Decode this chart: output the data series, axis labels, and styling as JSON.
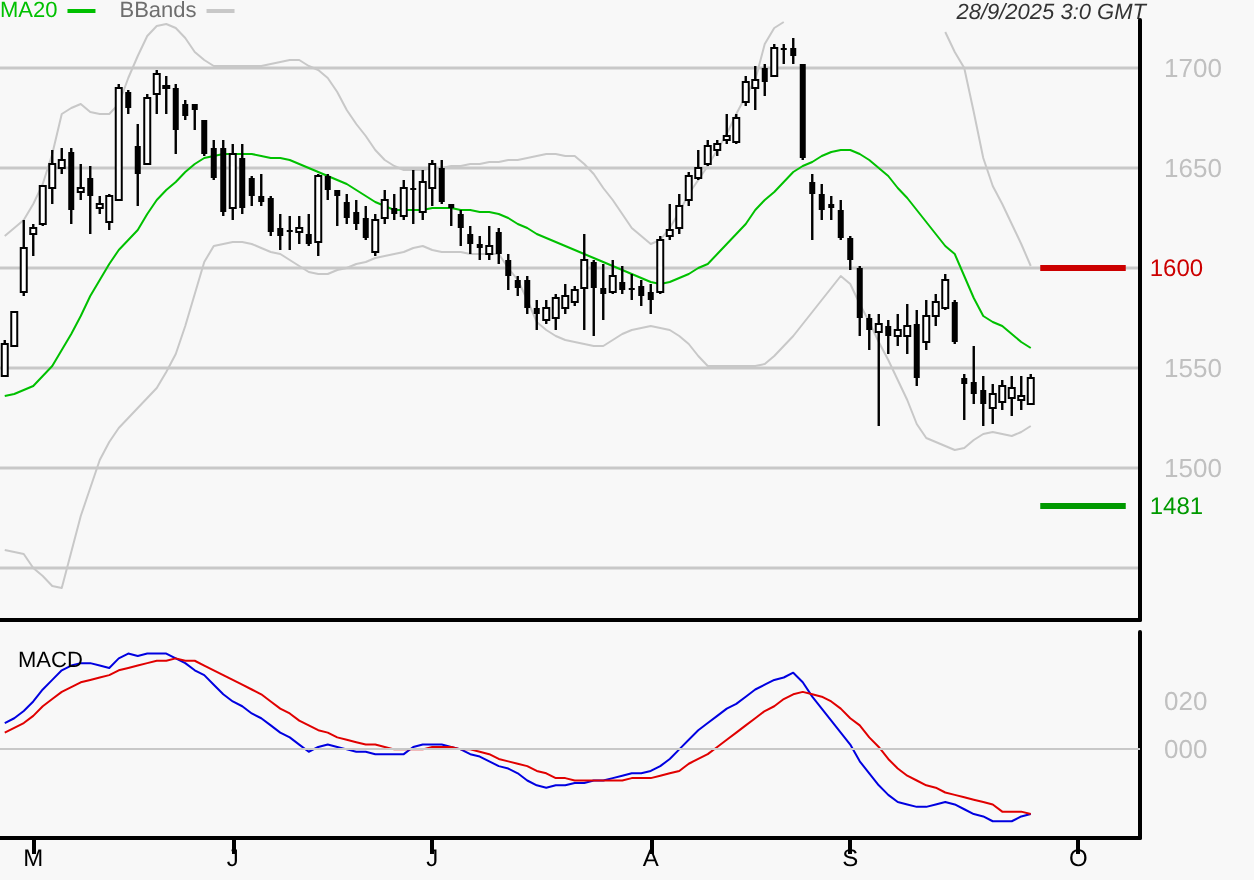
{
  "chart_data": [
    {
      "type": "candlestick",
      "annotations": [
        "28/9/2025 3:0 GMT"
      ],
      "categories": [
        null,
        null,
        null,
        null,
        null,
        null,
        null,
        null,
        null,
        null,
        null,
        null,
        null,
        null,
        null,
        null,
        null,
        null,
        null,
        null,
        null,
        null,
        null,
        null,
        null,
        null,
        null,
        null,
        null,
        null,
        null,
        null,
        null,
        null,
        null,
        null,
        null,
        null,
        null,
        null,
        null,
        null,
        null,
        null,
        null,
        null,
        null,
        null,
        null,
        null,
        null,
        null,
        null,
        null,
        null,
        null,
        null,
        null,
        null,
        null,
        null,
        null,
        null,
        null,
        null,
        null,
        null,
        null,
        null,
        null,
        null,
        null,
        null,
        null,
        null,
        null,
        null,
        null,
        null,
        null,
        null,
        null,
        null,
        null,
        null,
        null,
        null,
        null,
        null,
        null,
        null,
        null,
        null,
        null,
        null,
        null,
        null,
        null,
        null,
        null,
        null,
        null,
        null,
        null,
        null,
        null,
        null,
        null,
        null,
        null,
        null,
        null,
        null,
        null,
        null,
        null,
        null,
        null,
        null,
        null
      ],
      "ohlc": [
        [
          1546,
          1564,
          1546,
          1562
        ],
        [
          1561,
          1578,
          1561,
          1578
        ],
        [
          1588,
          1624,
          1586,
          1610
        ],
        [
          1617,
          1622,
          1606,
          1620
        ],
        [
          1622,
          1641,
          1621,
          1641
        ],
        [
          1640,
          1659,
          1632,
          1652
        ],
        [
          1650,
          1660,
          1647,
          1654
        ],
        [
          1658,
          1660,
          1622,
          1629
        ],
        [
          1638,
          1652,
          1634,
          1640
        ],
        [
          1645,
          1651,
          1617,
          1636
        ],
        [
          1630,
          1636,
          1627,
          1632
        ],
        [
          1623,
          1637,
          1619,
          1636
        ],
        [
          1634,
          1692,
          1634,
          1690
        ],
        [
          1688,
          1689,
          1677,
          1680
        ],
        [
          1661,
          1672,
          1631,
          1647
        ],
        [
          1652,
          1687,
          1652,
          1685
        ],
        [
          1687,
          1699,
          1677,
          1697
        ],
        [
          1690,
          1696,
          1677,
          1691
        ],
        [
          1690,
          1692,
          1657,
          1669
        ],
        [
          1682,
          1684,
          1674,
          1676
        ],
        [
          1682,
          1682,
          1669,
          1679
        ],
        [
          1674,
          1674,
          1656,
          1657
        ],
        [
          1660,
          1664,
          1644,
          1645
        ],
        [
          1660,
          1664,
          1626,
          1628
        ],
        [
          1630,
          1662,
          1624,
          1657
        ],
        [
          1655,
          1662,
          1627,
          1630
        ],
        [
          1645,
          1646,
          1631,
          1636
        ],
        [
          1636,
          1647,
          1631,
          1633
        ],
        [
          1635,
          1636,
          1616,
          1618
        ],
        [
          1620,
          1627,
          1609,
          1616
        ],
        [
          1619,
          1626,
          1609,
          1618
        ],
        [
          1618,
          1626,
          1612,
          1620
        ],
        [
          1617,
          1627,
          1611,
          1612
        ],
        [
          1613,
          1647,
          1606,
          1646
        ],
        [
          1646,
          1647,
          1634,
          1639
        ],
        [
          1639,
          1639,
          1621,
          1636
        ],
        [
          1633,
          1637,
          1622,
          1625
        ],
        [
          1628,
          1634,
          1619,
          1622
        ],
        [
          1625,
          1631,
          1614,
          1615
        ],
        [
          1608,
          1627,
          1606,
          1624
        ],
        [
          1625,
          1639,
          1622,
          1634
        ],
        [
          1630,
          1637,
          1624,
          1627
        ],
        [
          1626,
          1644,
          1624,
          1640
        ],
        [
          1640,
          1649,
          1622,
          1639
        ],
        [
          1628,
          1649,
          1624,
          1643
        ],
        [
          1640,
          1654,
          1631,
          1652
        ],
        [
          1650,
          1654,
          1632,
          1633
        ],
        [
          1632,
          1632,
          1621,
          1630
        ],
        [
          1627,
          1629,
          1611,
          1620
        ],
        [
          1617,
          1621,
          1607,
          1612
        ],
        [
          1612,
          1616,
          1604,
          1610
        ],
        [
          1607,
          1621,
          1604,
          1611
        ],
        [
          1618,
          1620,
          1602,
          1607
        ],
        [
          1604,
          1607,
          1589,
          1596
        ],
        [
          1594,
          1596,
          1586,
          1590
        ],
        [
          1594,
          1596,
          1577,
          1580
        ],
        [
          1580,
          1584,
          1569,
          1577
        ],
        [
          1574,
          1584,
          1572,
          1580
        ],
        [
          1575,
          1587,
          1569,
          1585
        ],
        [
          1580,
          1592,
          1577,
          1586
        ],
        [
          1583,
          1591,
          1581,
          1589
        ],
        [
          1590,
          1617,
          1569,
          1604
        ],
        [
          1603,
          1604,
          1566,
          1590
        ],
        [
          1590,
          1602,
          1574,
          1587
        ],
        [
          1588,
          1604,
          1587,
          1596
        ],
        [
          1593,
          1601,
          1587,
          1589
        ],
        [
          1590,
          1597,
          1584,
          1589
        ],
        [
          1591,
          1594,
          1581,
          1586
        ],
        [
          1588,
          1592,
          1577,
          1584
        ],
        [
          1588,
          1616,
          1587,
          1614
        ],
        [
          1616,
          1632,
          1614,
          1619
        ],
        [
          1620,
          1637,
          1617,
          1631
        ],
        [
          1634,
          1648,
          1631,
          1646
        ],
        [
          1645,
          1659,
          1644,
          1650
        ],
        [
          1652,
          1664,
          1651,
          1661
        ],
        [
          1659,
          1664,
          1656,
          1662
        ],
        [
          1664,
          1677,
          1662,
          1666
        ],
        [
          1663,
          1677,
          1662,
          1675
        ],
        [
          1683,
          1696,
          1681,
          1693
        ],
        [
          1690,
          1701,
          1679,
          1694
        ],
        [
          1700,
          1702,
          1686,
          1693
        ],
        [
          1696,
          1712,
          1696,
          1710
        ],
        [
          1710,
          1712,
          1702,
          1709
        ],
        [
          1710,
          1715,
          1702,
          1706
        ],
        [
          1702,
          1702,
          1654,
          1655
        ],
        [
          1643,
          1647,
          1614,
          1637
        ],
        [
          1637,
          1642,
          1624,
          1629
        ],
        [
          1632,
          1636,
          1624,
          1630
        ],
        [
          1629,
          1634,
          1614,
          1615
        ],
        [
          1615,
          1616,
          1599,
          1604
        ],
        [
          1600,
          1601,
          1566,
          1575
        ],
        [
          1575,
          1577,
          1559,
          1569
        ],
        [
          1568,
          1577,
          1521,
          1572
        ],
        [
          1571,
          1574,
          1557,
          1566
        ],
        [
          1566,
          1577,
          1561,
          1569
        ],
        [
          1566,
          1582,
          1557,
          1571
        ],
        [
          1572,
          1579,
          1541,
          1545
        ],
        [
          1563,
          1584,
          1559,
          1576
        ],
        [
          1576,
          1587,
          1571,
          1583
        ],
        [
          1580,
          1597,
          1579,
          1594
        ],
        [
          1583,
          1584,
          1562,
          1563
        ],
        [
          1545,
          1547,
          1524,
          1542
        ],
        [
          1543,
          1561,
          1532,
          1537
        ],
        [
          1539,
          1546,
          1521,
          1532
        ],
        [
          1530,
          1542,
          1522,
          1537
        ],
        [
          1533,
          1544,
          1529,
          1541
        ],
        [
          1535,
          1546,
          1526,
          1540
        ],
        [
          1534,
          1546,
          1529,
          1536
        ],
        [
          1532,
          1547,
          1532,
          1545
        ],
        null,
        null,
        null,
        null,
        null,
        null,
        null,
        null,
        null,
        null,
        null
      ],
      "series": [
        {
          "name": "MA20",
          "type": "line",
          "color": "#00c000",
          "values": [
            1536,
            1537,
            1539,
            1541,
            1546,
            1551,
            1559,
            1567,
            1576,
            1586,
            1594,
            1602,
            1609,
            1614,
            1619,
            1627,
            1634,
            1639,
            1643,
            1648,
            1652,
            1655,
            1656,
            1657,
            1657,
            1657,
            1657,
            1656,
            1655,
            1655,
            1654,
            1652,
            1650,
            1648,
            1646,
            1644,
            1642,
            1639,
            1636,
            1633,
            1631,
            1629,
            1629,
            1629,
            1629,
            1630,
            1630,
            1630,
            1629,
            1629,
            1628,
            1628,
            1627,
            1625,
            1622,
            1620,
            1617,
            1615,
            1613,
            1611,
            1609,
            1607,
            1605,
            1603,
            1601,
            1599,
            1597,
            1595,
            1593,
            1592,
            1593,
            1595,
            1597,
            1600,
            1602,
            1607,
            1612,
            1617,
            1622,
            1629,
            1634,
            1638,
            1643,
            1648,
            1651,
            1653,
            1656,
            1658,
            1659,
            1659,
            1657,
            1654,
            1650,
            1646,
            1640,
            1635,
            1629,
            1623,
            1617,
            1611,
            1607,
            1596,
            1585,
            1576,
            1573,
            1571,
            1567,
            1563,
            1560,
            null,
            null,
            null,
            null,
            null,
            null,
            null,
            null,
            null,
            null,
            null
          ]
        },
        {
          "name": "BBands",
          "type": "line",
          "color": "#c8c8c8",
          "values": [
            1616,
            1620,
            1624,
            1632,
            1642,
            1657,
            1677,
            1680,
            1682,
            1678,
            1677,
            1677,
            1682,
            1695,
            1706,
            1716,
            1721,
            1722,
            1720,
            1715,
            1708,
            1704,
            1701,
            1701,
            1701,
            1701,
            1701,
            1701,
            1702,
            1703,
            1704,
            1704,
            1701,
            1699,
            1695,
            1688,
            1679,
            1672,
            1666,
            1659,
            1654,
            1651,
            1649,
            1649,
            1649,
            1650,
            1650,
            1651,
            1651,
            1652,
            1652,
            1653,
            1653,
            1654,
            1654,
            1655,
            1656,
            1657,
            1657,
            1656,
            1656,
            1652,
            1647,
            1640,
            1634,
            1627,
            1620,
            1616,
            1612,
            1614,
            1620,
            1628,
            1637,
            1644,
            1651,
            1659,
            1667,
            1677,
            1686,
            1694,
            1712,
            1720,
            1723,
            null,
            null,
            null,
            null,
            null,
            null,
            null,
            null,
            null,
            null,
            null,
            null,
            null,
            null,
            null,
            null,
            1718,
            1708,
            1700,
            1678,
            1655,
            1641,
            1632,
            1622,
            1612,
            1601,
            null,
            null,
            null,
            null,
            null,
            null,
            null,
            null,
            null,
            null,
            null
          ]
        },
        {
          "type": "line",
          "color": "#c8c8c8",
          "values": [
            1459,
            1458,
            1457,
            1450,
            1446,
            1441,
            1440,
            1458,
            1476,
            1490,
            1504,
            1513,
            1520,
            1525,
            1530,
            1535,
            1540,
            1548,
            1557,
            1571,
            1587,
            1603,
            1611,
            1612,
            1613,
            1613,
            1612,
            1610,
            1608,
            1607,
            1604,
            1601,
            1598,
            1597,
            1597,
            1599,
            1600,
            1602,
            1603,
            1605,
            1606,
            1607,
            1608,
            1610,
            1611,
            1609,
            1608,
            1608,
            1608,
            1607,
            1607,
            1607,
            1607,
            1600,
            1594,
            1584,
            1573,
            1569,
            1566,
            1564,
            1563,
            1562,
            1561,
            1561,
            1564,
            1567,
            1569,
            1570,
            1571,
            1570,
            1569,
            1566,
            1562,
            1556,
            1551,
            1551,
            1551,
            1551,
            1551,
            1551,
            1552,
            1556,
            1561,
            1566,
            1572,
            1578,
            1584,
            1590,
            1596,
            1592,
            1582,
            1573,
            1563,
            1554,
            1544,
            1534,
            1522,
            1515,
            1513,
            1511,
            1509,
            1510,
            1514,
            1517,
            1518,
            1517,
            1516,
            1518,
            1521,
            null,
            null,
            null,
            null,
            null,
            null,
            null,
            null,
            null,
            null,
            null
          ]
        }
      ],
      "ylim": [
        1424,
        1724
      ],
      "yticks": [
        {
          "value": 1450,
          "label": null
        },
        1500,
        1550,
        {
          "value": 1600,
          "label": null
        },
        1650,
        1700
      ],
      "ref_lines": [
        {
          "axis": "y",
          "value": 1600,
          "label": "1600",
          "color": "#cc0000"
        },
        {
          "axis": "y",
          "value": 1481,
          "label": "1481",
          "color": "#009900"
        }
      ],
      "tick_labels": "y",
      "grid": "y",
      "legend": "top left",
      "marker": "none",
      "line_style": "solid"
    },
    {
      "type": "line",
      "title": "MACD",
      "categories": [
        null,
        null,
        null,
        "M",
        null,
        null,
        null,
        null,
        null,
        null,
        null,
        null,
        null,
        null,
        null,
        null,
        null,
        null,
        null,
        null,
        null,
        null,
        null,
        null,
        "J",
        null,
        null,
        null,
        null,
        null,
        null,
        null,
        null,
        null,
        null,
        null,
        null,
        null,
        null,
        null,
        null,
        null,
        null,
        null,
        null,
        "J",
        null,
        null,
        null,
        null,
        null,
        null,
        null,
        null,
        null,
        null,
        null,
        null,
        null,
        null,
        null,
        null,
        null,
        null,
        null,
        null,
        null,
        null,
        "A",
        null,
        null,
        null,
        null,
        null,
        null,
        null,
        null,
        null,
        null,
        null,
        null,
        null,
        null,
        null,
        null,
        null,
        null,
        null,
        null,
        "S",
        null,
        null,
        null,
        null,
        null,
        null,
        null,
        null,
        null,
        null,
        null,
        null,
        null,
        null,
        null,
        null,
        null,
        null,
        null,
        null,
        null,
        null,
        null,
        "O",
        null,
        null,
        null,
        null,
        null,
        null
      ],
      "series": [
        {
          "color": "#0000e0",
          "values": [
            11,
            13,
            16,
            20,
            25,
            29,
            33,
            35,
            36,
            36,
            35,
            34,
            38,
            40,
            39,
            40,
            40,
            40,
            38,
            36,
            33,
            31,
            27,
            23,
            20,
            18,
            15,
            13,
            10,
            7,
            5,
            2,
            -1,
            1,
            2,
            1,
            0,
            -1,
            -1,
            -2,
            -2,
            -2,
            -2,
            1,
            2,
            2,
            2,
            1,
            0,
            -2,
            -3,
            -5,
            -7,
            -8,
            -10,
            -13,
            -15,
            -16,
            -15,
            -15,
            -14,
            -14,
            -13,
            -13,
            -12,
            -11,
            -10,
            -10,
            -9,
            -7,
            -4,
            0,
            4,
            8,
            11,
            14,
            17,
            19,
            22,
            25,
            27,
            29,
            30,
            32,
            28,
            22,
            17,
            12,
            7,
            2,
            -5,
            -10,
            -15,
            -19,
            -22,
            -23,
            -24,
            -24,
            -23,
            -22,
            -23,
            -25,
            -27,
            -28,
            -30,
            -30,
            -30,
            -28,
            -27,
            null,
            null,
            null,
            null,
            null,
            null,
            null,
            null,
            null,
            null,
            null
          ]
        },
        {
          "color": "#e00000",
          "values": [
            7,
            9,
            11,
            14,
            18,
            21,
            24,
            26,
            28,
            29,
            30,
            31,
            33,
            34,
            35,
            36,
            37,
            37,
            38,
            37,
            37,
            35,
            33,
            31,
            29,
            27,
            25,
            23,
            20,
            17,
            15,
            12,
            10,
            8,
            7,
            5,
            4,
            3,
            2,
            2,
            1,
            0,
            0,
            0,
            0,
            1,
            1,
            1,
            0,
            0,
            -1,
            -2,
            -4,
            -5,
            -6,
            -7,
            -9,
            -10,
            -12,
            -12,
            -13,
            -13,
            -13,
            -13,
            -13,
            -13,
            -12,
            -12,
            -12,
            -11,
            -10,
            -9,
            -6,
            -4,
            -2,
            1,
            4,
            7,
            10,
            13,
            16,
            18,
            21,
            23,
            24,
            23,
            22,
            20,
            17,
            13,
            10,
            5,
            1,
            -4,
            -8,
            -11,
            -13,
            -15,
            -16,
            -18,
            -19,
            -20,
            -21,
            -22,
            -23,
            -26,
            -26,
            -26,
            -27,
            null,
            null,
            null,
            null,
            null,
            null,
            null,
            null,
            null,
            null,
            null
          ]
        }
      ],
      "ylim": [
        -37,
        49
      ],
      "yticks": [
        {
          "value": 0,
          "label": "000"
        },
        {
          "value": 20,
          "label": "020"
        }
      ],
      "ref_lines": [
        {
          "axis": "y",
          "value": 0,
          "color": "#c8c8c8"
        }
      ],
      "grid": false,
      "marker": "none",
      "line_style": "solid"
    }
  ]
}
